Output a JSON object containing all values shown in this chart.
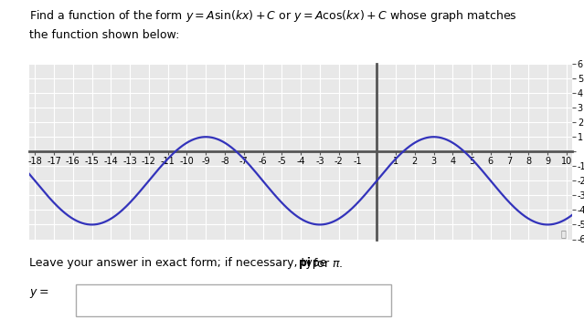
{
  "xmin": -18,
  "xmax": 10,
  "ymin": -6,
  "ymax": 6,
  "curve_color": "#3333bb",
  "curve_linewidth": 1.6,
  "amplitude": 3,
  "k": 0.5235987755982988,
  "vertical_shift": -2,
  "phase": 3.0,
  "background_color": "#ffffff",
  "plot_bg_color": "#e8e8e8",
  "grid_color": "#ffffff",
  "axis_color": "#555555",
  "axis_linewidth": 2.0,
  "title_line1": "Find a function of the form $y = A\\sin(kx) + C$ or $y = A\\cos(kx) + C$ whose graph matches",
  "title_line2": "the function shown below:",
  "footer_main": "Leave your answer in exact form; if necessary, type ",
  "footer_bold": "pi",
  "footer_end": " for ",
  "input_label": "$y = $",
  "fontsize_title": 9.0,
  "fontsize_tick": 7.0,
  "fontsize_footer": 9.0
}
